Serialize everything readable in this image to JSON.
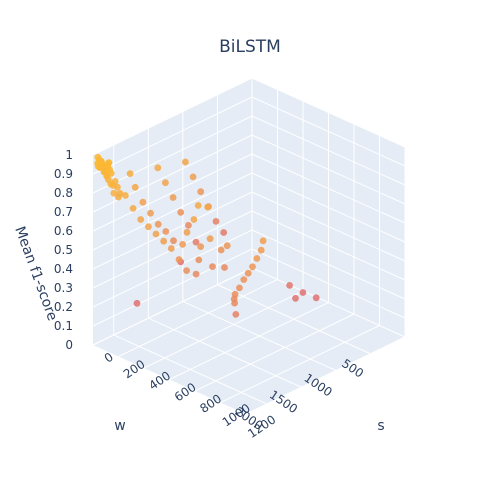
{
  "chart_data": {
    "type": "scatter",
    "title": "BiLSTM",
    "xlabel": "w",
    "ylabel": "s",
    "zlabel": "Mean f1-score",
    "x_ticks": [
      "500",
      "1000",
      "1500",
      "2000"
    ],
    "y_ticks": [
      "0",
      "200",
      "400",
      "600",
      "800",
      "1000",
      "1200"
    ],
    "z_ticks": [
      "0",
      "0.1",
      "0.2",
      "0.3",
      "0.4",
      "0.5",
      "0.6",
      "0.7",
      "0.8",
      "0.9",
      "1"
    ],
    "xlim": [
      0,
      2300
    ],
    "ylim": [
      0,
      1200
    ],
    "zlim": [
      0,
      1
    ],
    "grid": true,
    "colors": {
      "background": "#e5ecf6",
      "grid": "#ffffff",
      "low": "#e07070",
      "mid": "#f0a050",
      "high": "#fbb734"
    },
    "points": [
      {
        "w": 1050,
        "s": 10,
        "z": 0.22
      },
      {
        "w": 1700,
        "s": 20,
        "z": 0.12
      },
      {
        "w": 2200,
        "s": 10,
        "z": 0.95
      },
      {
        "w": 2220,
        "s": 20,
        "z": 0.96
      },
      {
        "w": 2240,
        "s": 15,
        "z": 0.97
      },
      {
        "w": 2260,
        "s": 30,
        "z": 0.94
      },
      {
        "w": 2280,
        "s": 25,
        "z": 0.96
      },
      {
        "w": 2200,
        "s": 40,
        "z": 0.93
      },
      {
        "w": 2230,
        "s": 50,
        "z": 0.95
      },
      {
        "w": 2250,
        "s": 60,
        "z": 0.92
      },
      {
        "w": 2270,
        "s": 45,
        "z": 0.97
      },
      {
        "w": 2210,
        "s": 70,
        "z": 0.94
      },
      {
        "w": 2290,
        "s": 35,
        "z": 0.95
      },
      {
        "w": 2240,
        "s": 80,
        "z": 0.96
      },
      {
        "w": 2180,
        "s": 30,
        "z": 0.93
      },
      {
        "w": 2260,
        "s": 90,
        "z": 0.91
      },
      {
        "w": 2300,
        "s": 55,
        "z": 0.95
      },
      {
        "w": 2220,
        "s": 100,
        "z": 0.92
      },
      {
        "w": 2280,
        "s": 110,
        "z": 0.9
      },
      {
        "w": 2200,
        "s": 120,
        "z": 0.88
      },
      {
        "w": 2240,
        "s": 5,
        "z": 0.98
      },
      {
        "w": 2270,
        "s": 75,
        "z": 0.93
      },
      {
        "w": 2190,
        "s": 65,
        "z": 0.96
      },
      {
        "w": 2250,
        "s": 130,
        "z": 0.87
      },
      {
        "w": 2300,
        "s": 140,
        "z": 0.89
      },
      {
        "w": 2215,
        "s": 145,
        "z": 0.86
      },
      {
        "w": 2235,
        "s": 95,
        "z": 0.94
      },
      {
        "w": 2295,
        "s": 105,
        "z": 0.92
      },
      {
        "w": 2165,
        "s": 50,
        "z": 0.95
      },
      {
        "w": 2275,
        "s": 150,
        "z": 0.84
      },
      {
        "w": 2205,
        "s": 160,
        "z": 0.83
      },
      {
        "w": 2245,
        "s": 170,
        "z": 0.82
      },
      {
        "w": 2200,
        "s": 200,
        "z": 0.83
      },
      {
        "w": 2200,
        "s": 260,
        "z": 0.78
      },
      {
        "w": 2200,
        "s": 320,
        "z": 0.74
      },
      {
        "w": 2200,
        "s": 380,
        "z": 0.72
      },
      {
        "w": 2200,
        "s": 440,
        "z": 0.7
      },
      {
        "w": 2200,
        "s": 500,
        "z": 0.68
      },
      {
        "w": 2200,
        "s": 560,
        "z": 0.66
      },
      {
        "w": 2200,
        "s": 620,
        "z": 0.62
      },
      {
        "w": 2200,
        "s": 680,
        "z": 0.58
      },
      {
        "w": 1800,
        "s": 20,
        "z": 0.82
      },
      {
        "w": 1800,
        "s": 60,
        "z": 0.76
      },
      {
        "w": 1800,
        "s": 120,
        "z": 0.7
      },
      {
        "w": 1800,
        "s": 180,
        "z": 0.66
      },
      {
        "w": 1800,
        "s": 240,
        "z": 0.62
      },
      {
        "w": 1800,
        "s": 300,
        "z": 0.6
      },
      {
        "w": 1800,
        "s": 360,
        "z": 0.57
      },
      {
        "w": 1400,
        "s": 20,
        "z": 0.78
      },
      {
        "w": 1400,
        "s": 80,
        "z": 0.72
      },
      {
        "w": 1400,
        "s": 140,
        "z": 0.66
      },
      {
        "w": 1400,
        "s": 200,
        "z": 0.6
      },
      {
        "w": 1400,
        "s": 260,
        "z": 0.55
      },
      {
        "w": 1400,
        "s": 320,
        "z": 0.48
      },
      {
        "w": 1000,
        "s": 20,
        "z": 0.74
      },
      {
        "w": 1000,
        "s": 80,
        "z": 0.68
      },
      {
        "w": 1000,
        "s": 140,
        "z": 0.62
      },
      {
        "w": 1000,
        "s": 200,
        "z": 0.56
      },
      {
        "w": 1000,
        "s": 260,
        "z": 0.5
      },
      {
        "w": 1000,
        "s": 320,
        "z": 0.46
      },
      {
        "w": 1700,
        "s": 500,
        "z": 0.78
      },
      {
        "w": 1800,
        "s": 520,
        "z": 0.73
      },
      {
        "w": 1900,
        "s": 520,
        "z": 0.68
      },
      {
        "w": 1600,
        "s": 520,
        "z": 0.76
      },
      {
        "w": 2000,
        "s": 540,
        "z": 0.64
      },
      {
        "w": 1850,
        "s": 600,
        "z": 0.62
      },
      {
        "w": 1750,
        "s": 620,
        "z": 0.65
      },
      {
        "w": 1950,
        "s": 640,
        "z": 0.58
      },
      {
        "w": 1700,
        "s": 680,
        "z": 0.6
      },
      {
        "w": 1650,
        "s": 700,
        "z": 0.62
      },
      {
        "w": 1900,
        "s": 720,
        "z": 0.56
      },
      {
        "w": 1800,
        "s": 760,
        "z": 0.55
      },
      {
        "w": 2100,
        "s": 700,
        "z": 0.55
      },
      {
        "w": 1500,
        "s": 900,
        "z": 0.68
      },
      {
        "w": 1600,
        "s": 940,
        "z": 0.66
      },
      {
        "w": 1700,
        "s": 960,
        "z": 0.64
      },
      {
        "w": 1800,
        "s": 980,
        "z": 0.62
      },
      {
        "w": 1900,
        "s": 1000,
        "z": 0.61
      },
      {
        "w": 2000,
        "s": 1020,
        "z": 0.6
      },
      {
        "w": 2100,
        "s": 1040,
        "z": 0.58
      },
      {
        "w": 2200,
        "s": 1060,
        "z": 0.57
      },
      {
        "w": 2250,
        "s": 1080,
        "z": 0.56
      },
      {
        "w": 2280,
        "s": 1100,
        "z": 0.55
      },
      {
        "w": 2300,
        "s": 1120,
        "z": 0.5
      },
      {
        "w": 1300,
        "s": 1000,
        "z": 0.44
      },
      {
        "w": 1200,
        "s": 1050,
        "z": 0.4
      },
      {
        "w": 1100,
        "s": 1100,
        "z": 0.37
      },
      {
        "w": 1400,
        "s": 1100,
        "z": 0.42
      }
    ]
  }
}
